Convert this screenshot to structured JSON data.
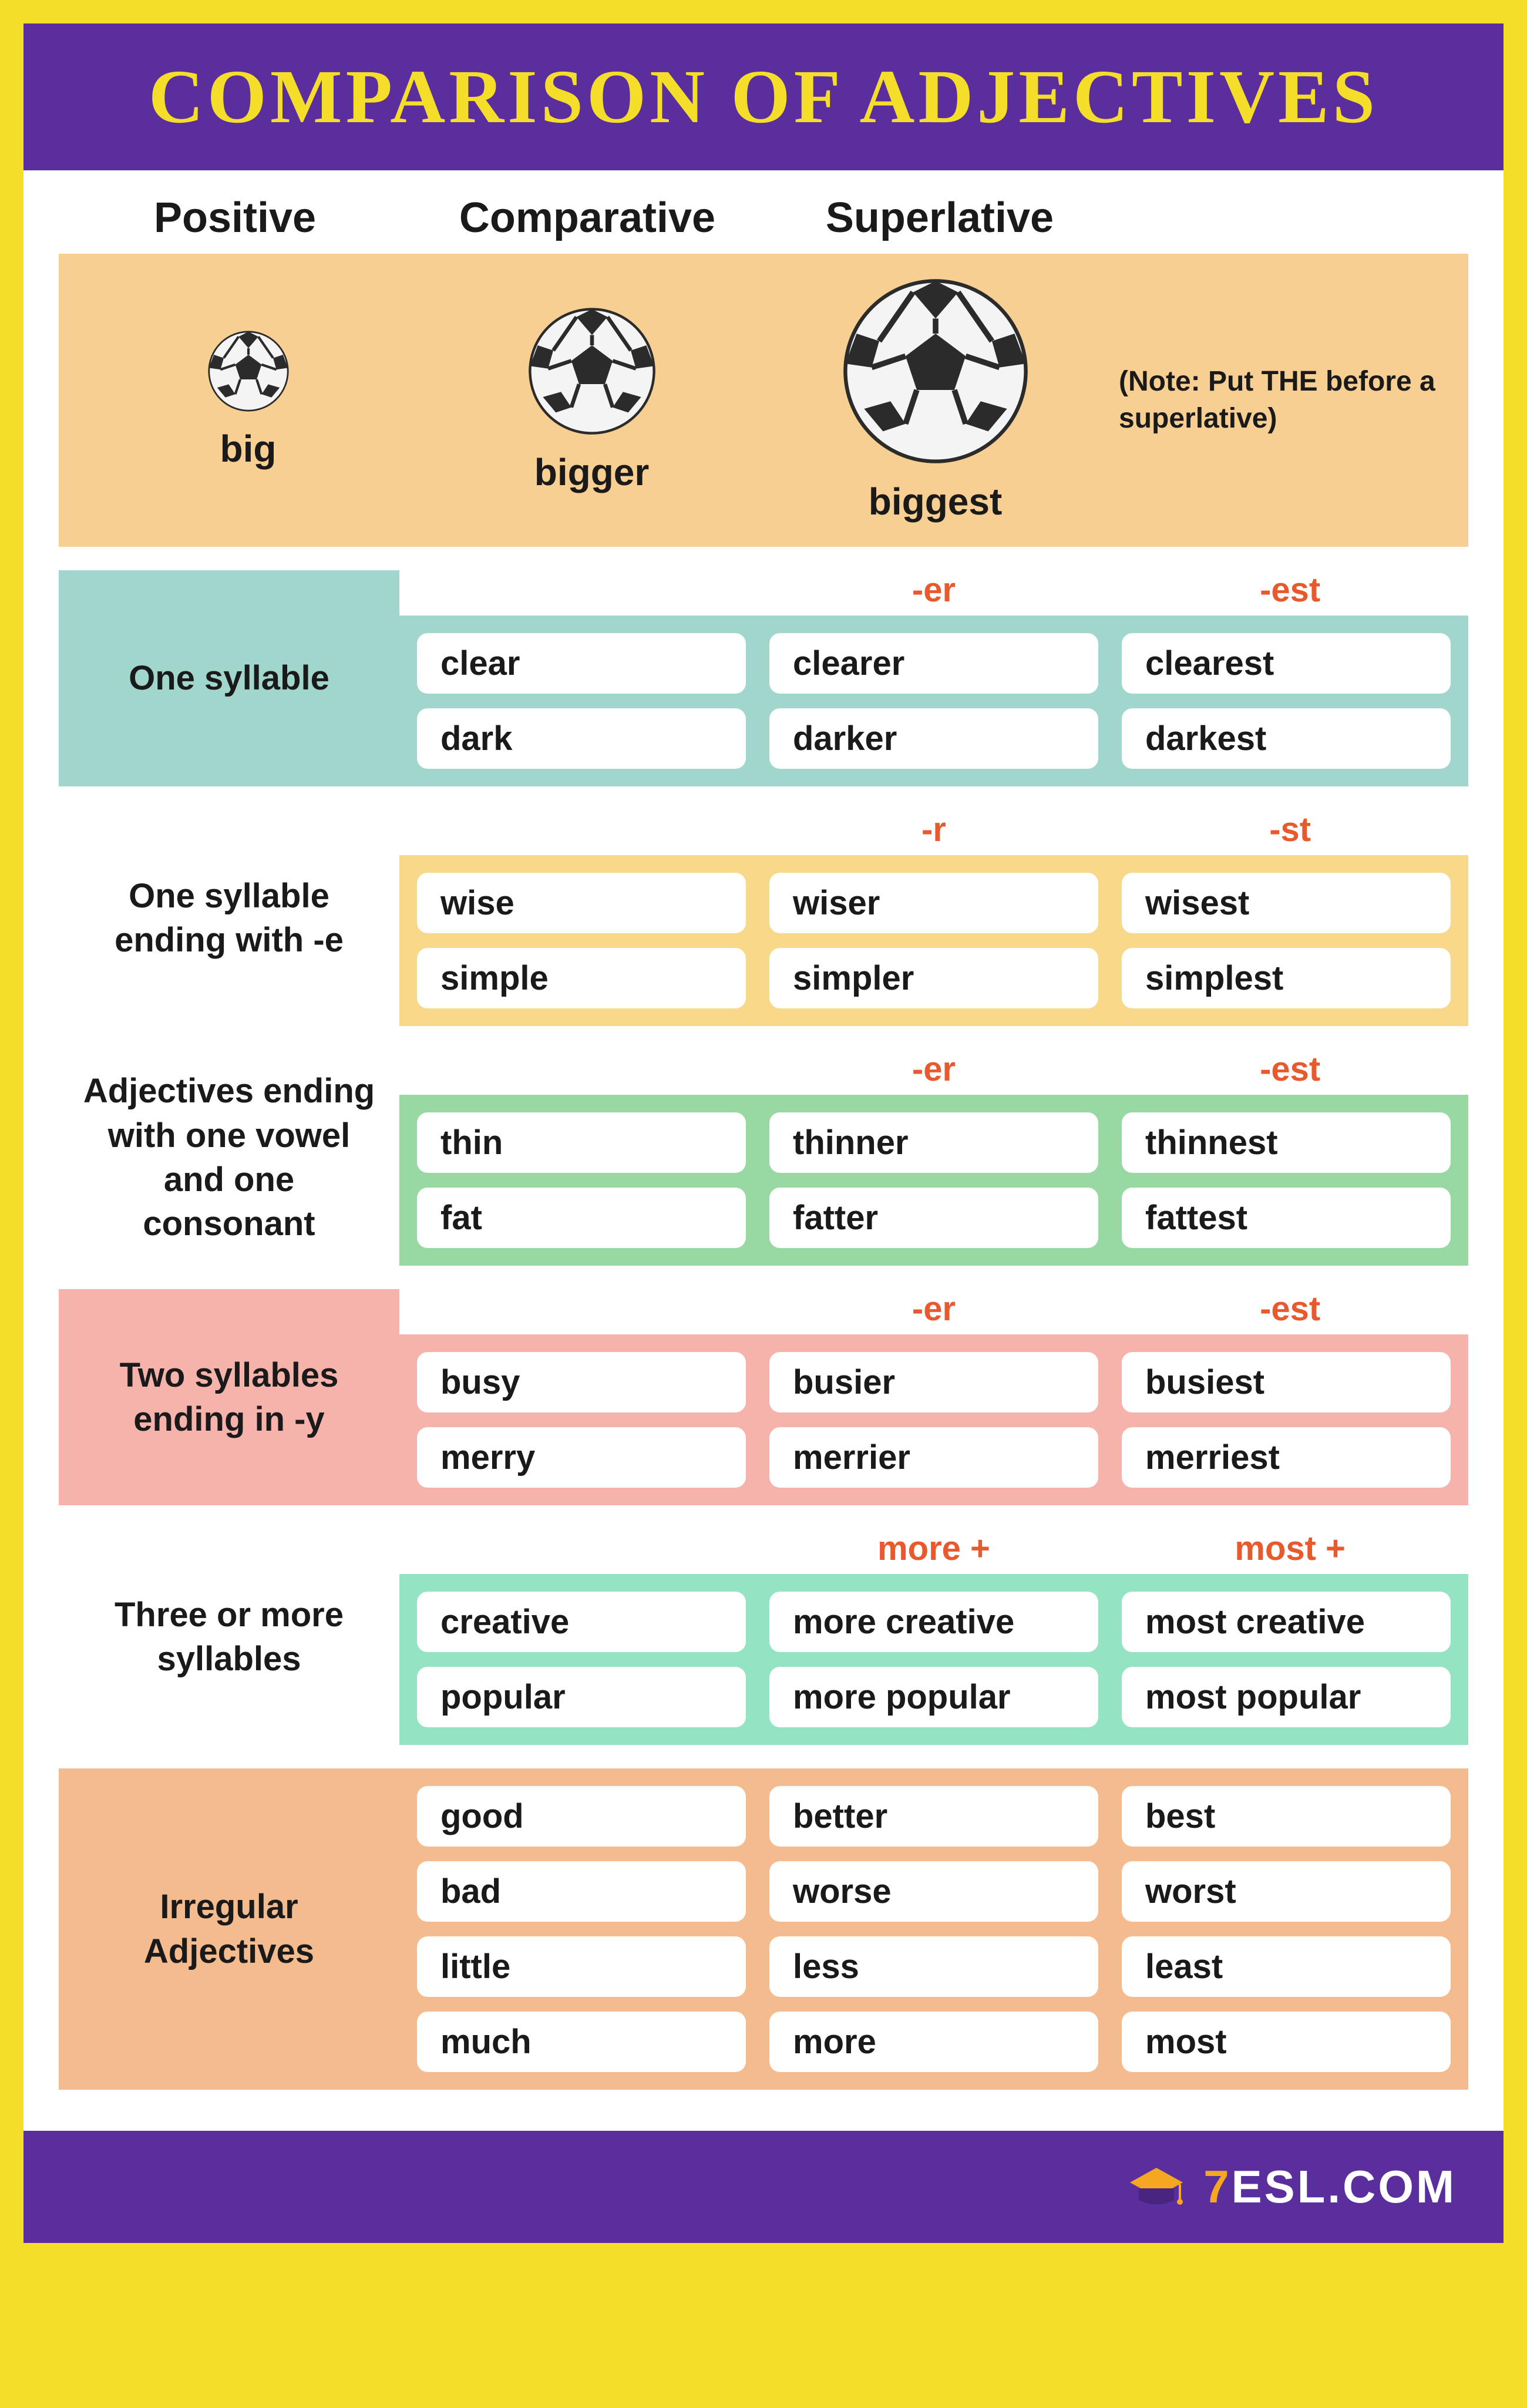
{
  "title": "COMPARISON OF ADJECTIVES",
  "columns": {
    "c1": "Positive",
    "c2": "Comparative",
    "c3": "Superlative"
  },
  "example": {
    "labels": [
      "big",
      "bigger",
      "biggest"
    ],
    "ball_sizes": [
      140,
      220,
      320
    ],
    "note": "(Note: Put THE before a superlative)",
    "band_color": "#f8cf93"
  },
  "rules": [
    {
      "label": "One syllable",
      "label_bg": "#a0d6cc",
      "band_bg": "#a0d6cc",
      "suffix": [
        "",
        "-er",
        "-est"
      ],
      "rows": [
        [
          "clear",
          "clearer",
          "clearest"
        ],
        [
          "dark",
          "darker",
          "darkest"
        ]
      ]
    },
    {
      "label": "One syllable ending with -e",
      "label_bg": "#ffffff",
      "band_bg": "#f8d889",
      "suffix": [
        "",
        "-r",
        "-st"
      ],
      "rows": [
        [
          "wise",
          "wiser",
          "wisest"
        ],
        [
          "simple",
          "simpler",
          "simplest"
        ]
      ]
    },
    {
      "label": "Adjectives ending with one vowel and one consonant",
      "label_bg": "#ffffff",
      "band_bg": "#98d9a3",
      "suffix": [
        "",
        "-er",
        "-est"
      ],
      "rows": [
        [
          "thin",
          "thinner",
          "thinnest"
        ],
        [
          "fat",
          "fatter",
          "fattest"
        ]
      ]
    },
    {
      "label": "Two syllables ending in -y",
      "label_bg": "#f5b3ac",
      "band_bg": "#f5b3ac",
      "suffix": [
        "",
        "-er",
        "-est"
      ],
      "rows": [
        [
          "busy",
          "busier",
          "busiest"
        ],
        [
          "merry",
          "merrier",
          "merriest"
        ]
      ]
    },
    {
      "label": "Three or more syllables",
      "label_bg": "#ffffff",
      "band_bg": "#94e3c2",
      "suffix": [
        "",
        "more +",
        "most +"
      ],
      "rows": [
        [
          "creative",
          "more creative",
          "most creative"
        ],
        [
          "popular",
          "more popular",
          "most popular"
        ]
      ]
    },
    {
      "label": "Irregular Adjectives",
      "label_bg": "#f4bb8f",
      "band_bg": "#f4bb8f",
      "suffix": [
        "",
        "",
        ""
      ],
      "rows": [
        [
          "good",
          "better",
          "best"
        ],
        [
          "bad",
          "worse",
          "worst"
        ],
        [
          "little",
          "less",
          "least"
        ],
        [
          "much",
          "more",
          "most"
        ]
      ]
    }
  ],
  "footer": {
    "brand_seven": "7",
    "brand_rest": "ESL.COM"
  },
  "colors": {
    "page_border": "#f5de2a",
    "title_bg": "#5b2e9e",
    "title_fg": "#f5de2a",
    "suffix_color": "#e85a2e",
    "text": "#1a1a1a",
    "pill_bg": "#ffffff"
  }
}
